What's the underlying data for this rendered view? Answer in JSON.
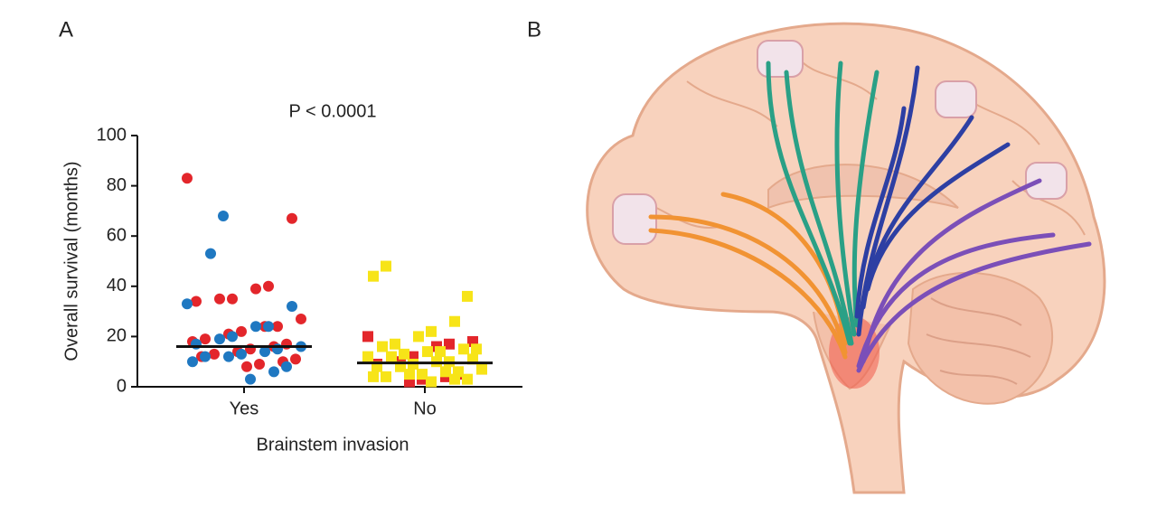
{
  "panels": [
    "A",
    "B"
  ],
  "chart_data": {
    "type": "dot",
    "title": "P < 0.0001",
    "ylabel": "Overall survival (months)",
    "xlabel": "Brainstem invasion",
    "categories": [
      "Yes",
      "No"
    ],
    "markers": [
      "circle",
      "square"
    ],
    "ylim": [
      0,
      100
    ],
    "yticks": [
      0,
      20,
      40,
      60,
      80,
      100
    ],
    "medians": [
      16,
      9.5
    ],
    "series": [
      {
        "color": "#e3262b",
        "values": [
          [
            83,
            67,
            40,
            39,
            35,
            35,
            34,
            27,
            24,
            24,
            22,
            21,
            19,
            18,
            17,
            16,
            15,
            14,
            13,
            12,
            11,
            10,
            9,
            8
          ],
          [
            20,
            18,
            17,
            16,
            12,
            10,
            9,
            7,
            5,
            4,
            3,
            2
          ]
        ]
      },
      {
        "color": "#1f78c1",
        "values": [
          [
            68,
            53,
            33,
            32,
            24,
            24,
            20,
            19,
            17,
            16,
            15,
            14,
            13,
            12,
            12,
            10,
            8,
            6,
            3
          ],
          []
        ]
      },
      {
        "color": "#f7e418",
        "values": [
          [],
          [
            48,
            44,
            36,
            26,
            22,
            20,
            17,
            16,
            15,
            15,
            14,
            14,
            13,
            12,
            12,
            11,
            10,
            10,
            9,
            8,
            8,
            7,
            6,
            6,
            5,
            5,
            4,
            4,
            3,
            3,
            2
          ]
        ]
      }
    ]
  }
}
